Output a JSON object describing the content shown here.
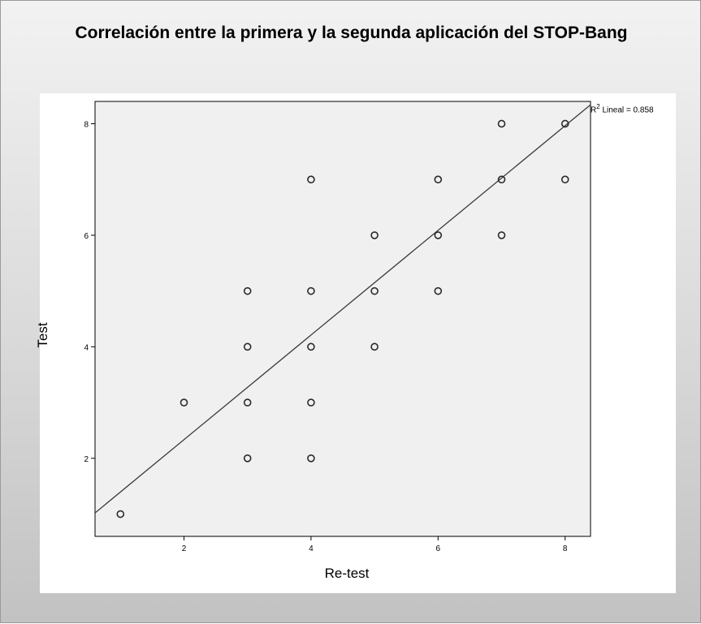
{
  "chart_data": {
    "type": "scatter",
    "title": "Correlación entre la primera y la segunda aplicación del STOP-Bang",
    "xlabel": "Re-test",
    "ylabel": "Test",
    "xlim": [
      0.6,
      8.4
    ],
    "ylim": [
      0.6,
      8.4
    ],
    "x_ticks": [
      2,
      4,
      6,
      8
    ],
    "y_ticks": [
      2,
      4,
      6,
      8
    ],
    "grid": false,
    "points": [
      {
        "x": 1,
        "y": 1
      },
      {
        "x": 2,
        "y": 3
      },
      {
        "x": 3,
        "y": 2
      },
      {
        "x": 3,
        "y": 3
      },
      {
        "x": 3,
        "y": 4
      },
      {
        "x": 3,
        "y": 5
      },
      {
        "x": 4,
        "y": 2
      },
      {
        "x": 4,
        "y": 3
      },
      {
        "x": 4,
        "y": 4
      },
      {
        "x": 4,
        "y": 5
      },
      {
        "x": 4,
        "y": 7
      },
      {
        "x": 5,
        "y": 4
      },
      {
        "x": 5,
        "y": 5
      },
      {
        "x": 5,
        "y": 6
      },
      {
        "x": 6,
        "y": 5
      },
      {
        "x": 6,
        "y": 6
      },
      {
        "x": 6,
        "y": 7
      },
      {
        "x": 7,
        "y": 6
      },
      {
        "x": 7,
        "y": 7
      },
      {
        "x": 7,
        "y": 8
      },
      {
        "x": 8,
        "y": 7
      },
      {
        "x": 8,
        "y": 8
      }
    ],
    "fit_line": {
      "label_prefix": "R",
      "label_exponent": "2",
      "label_suffix": " Lineal = 0.858",
      "x_start": 0.6,
      "y_start": 1.02,
      "x_end": 8.4,
      "y_end": 8.34
    },
    "colors": {
      "plot_background": "#f0f0f0",
      "marker": "#2a2a2a",
      "line": "#3a3a3a"
    }
  }
}
